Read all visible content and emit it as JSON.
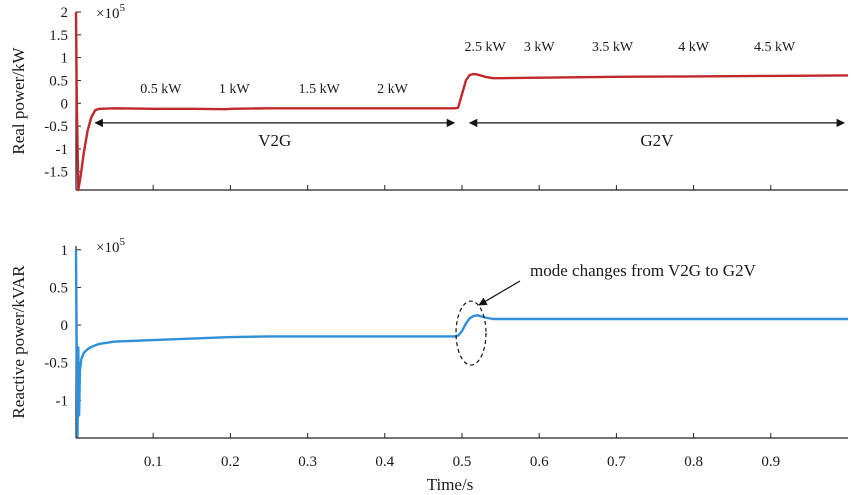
{
  "chart_data": [
    {
      "type": "line",
      "panel": "top",
      "ylabel": "Real power/kW",
      "scale_base": "×10",
      "scale_exp": "5",
      "ylim": [
        -1.9,
        2
      ],
      "xlim": [
        0,
        1
      ],
      "yticks": [
        "2",
        "1.5",
        "1",
        "0.5",
        "0",
        "-0.5",
        "-1",
        "-1.5"
      ],
      "ytick_values": [
        2,
        1.5,
        1,
        0.5,
        0,
        -0.5,
        -1,
        -1.5
      ],
      "color": "#c0282a",
      "series": [
        {
          "name": "Real power",
          "x": [
            0,
            0.001,
            0.003,
            0.006,
            0.01,
            0.015,
            0.02,
            0.025,
            0.03,
            0.05,
            0.1,
            0.15,
            0.195,
            0.2,
            0.25,
            0.3,
            0.35,
            0.4,
            0.45,
            0.49,
            0.495,
            0.5,
            0.505,
            0.51,
            0.515,
            0.52,
            0.53,
            0.54,
            0.55,
            0.6,
            0.7,
            0.8,
            0.9,
            1.0
          ],
          "y": [
            2.0,
            0.0,
            -1.9,
            -1.6,
            -1.1,
            -0.6,
            -0.3,
            -0.15,
            -0.12,
            -0.11,
            -0.12,
            -0.12,
            -0.13,
            -0.12,
            -0.11,
            -0.11,
            -0.11,
            -0.11,
            -0.11,
            -0.11,
            -0.1,
            0.2,
            0.5,
            0.62,
            0.64,
            0.63,
            0.58,
            0.55,
            0.55,
            0.56,
            0.58,
            0.59,
            0.6,
            0.61
          ]
        }
      ],
      "annotations": [
        "0.5 kW",
        "1 kW",
        "1.5 kW",
        "2 kW",
        "2.5 kW",
        "3 kW",
        "3.5 kW",
        "4 kW",
        "4.5 kW"
      ],
      "annotation_x": [
        0.11,
        0.205,
        0.315,
        0.41,
        0.53,
        0.6,
        0.695,
        0.8,
        0.905
      ],
      "annotation_y": [
        0.22,
        0.22,
        0.22,
        0.22,
        1.15,
        1.15,
        1.15,
        1.15,
        1.15
      ],
      "modes": [
        {
          "label": "V2G",
          "x_start": 0.025,
          "x_end": 0.49
        },
        {
          "label": "G2V",
          "x_start": 0.51,
          "x_end": 0.995
        }
      ],
      "mode_arrow_y": -0.43
    },
    {
      "type": "line",
      "panel": "bottom",
      "ylabel": "Reactive power/kVAR",
      "scale_base": "×10",
      "scale_exp": "5",
      "ylim": [
        -1.5,
        1.05
      ],
      "xlim": [
        0,
        1
      ],
      "yticks": [
        "1",
        "0.5",
        "0",
        "-0.5",
        "-1"
      ],
      "ytick_values": [
        1,
        0.5,
        0,
        -0.5,
        -1
      ],
      "xticks": [
        "0.1",
        "0.2",
        "0.3",
        "0.4",
        "0.5",
        "0.6",
        "0.7",
        "0.8",
        "0.9"
      ],
      "xtick_values": [
        0.1,
        0.2,
        0.3,
        0.4,
        0.5,
        0.6,
        0.7,
        0.8,
        0.9
      ],
      "xlabel": "Time/s",
      "color": "#2f8fd8",
      "series": [
        {
          "name": "Reactive power",
          "x": [
            0,
            0.001,
            0.002,
            0.003,
            0.004,
            0.005,
            0.007,
            0.01,
            0.015,
            0.02,
            0.03,
            0.05,
            0.1,
            0.15,
            0.2,
            0.25,
            0.3,
            0.35,
            0.4,
            0.45,
            0.49,
            0.495,
            0.5,
            0.505,
            0.51,
            0.515,
            0.52,
            0.53,
            0.54,
            0.55,
            0.6,
            0.7,
            0.8,
            0.9,
            1.0
          ],
          "y": [
            1.0,
            -0.5,
            -1.48,
            -0.3,
            -1.2,
            -0.6,
            -0.45,
            -0.37,
            -0.32,
            -0.29,
            -0.25,
            -0.22,
            -0.2,
            -0.18,
            -0.16,
            -0.15,
            -0.15,
            -0.15,
            -0.15,
            -0.15,
            -0.15,
            -0.14,
            -0.08,
            0.02,
            0.09,
            0.12,
            0.13,
            0.1,
            0.08,
            0.08,
            0.08,
            0.08,
            0.08,
            0.08,
            0.08
          ]
        }
      ],
      "callout_text": "mode changes from V2G to G2V",
      "callout_x": 0.5,
      "callout_y": 0.0
    }
  ]
}
